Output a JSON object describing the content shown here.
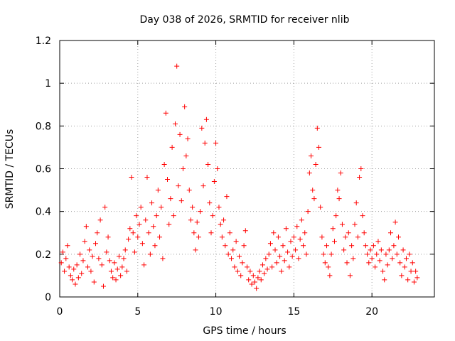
{
  "chart_data": {
    "type": "scatter",
    "title": "Day 038 of 2026, SRMTID for receiver nlib",
    "xlabel": "GPS time / hours",
    "ylabel": "SRMTID / TECUs",
    "xlim": [
      0,
      24
    ],
    "ylim": [
      0,
      1.2
    ],
    "xticks": [
      0,
      5,
      10,
      15,
      20
    ],
    "xtick_labels": [
      "0",
      "5",
      "10",
      "15",
      "20"
    ],
    "yticks": [
      0,
      0.2,
      0.4,
      0.6,
      0.8,
      1,
      1.2
    ],
    "ytick_labels": [
      "0",
      "0.2",
      "0.4",
      "0.6",
      "0.8",
      "1",
      "1.2"
    ],
    "grid": true,
    "marker": "+",
    "color": "#ff0000",
    "series": [
      {
        "name": "SRMTID",
        "points": [
          [
            0.1,
            0.16
          ],
          [
            0.2,
            0.21
          ],
          [
            0.3,
            0.12
          ],
          [
            0.4,
            0.18
          ],
          [
            0.5,
            0.24
          ],
          [
            0.6,
            0.14
          ],
          [
            0.7,
            0.1
          ],
          [
            0.8,
            0.08
          ],
          [
            0.9,
            0.13
          ],
          [
            1.0,
            0.06
          ],
          [
            1.1,
            0.15
          ],
          [
            1.2,
            0.09
          ],
          [
            1.3,
            0.2
          ],
          [
            1.4,
            0.11
          ],
          [
            1.5,
            0.17
          ],
          [
            1.6,
            0.26
          ],
          [
            1.7,
            0.33
          ],
          [
            1.8,
            0.14
          ],
          [
            1.9,
            0.22
          ],
          [
            2.0,
            0.12
          ],
          [
            2.1,
            0.19
          ],
          [
            2.2,
            0.07
          ],
          [
            2.3,
            0.25
          ],
          [
            2.4,
            0.3
          ],
          [
            2.5,
            0.18
          ],
          [
            2.6,
            0.36
          ],
          [
            2.7,
            0.15
          ],
          [
            2.8,
            0.05
          ],
          [
            2.9,
            0.42
          ],
          [
            3.0,
            0.21
          ],
          [
            3.1,
            0.28
          ],
          [
            3.2,
            0.17
          ],
          [
            3.3,
            0.12
          ],
          [
            3.4,
            0.09
          ],
          [
            3.5,
            0.16
          ],
          [
            3.6,
            0.08
          ],
          [
            3.7,
            0.13
          ],
          [
            3.8,
            0.19
          ],
          [
            3.9,
            0.1
          ],
          [
            4.0,
            0.14
          ],
          [
            4.1,
            0.18
          ],
          [
            4.2,
            0.22
          ],
          [
            4.3,
            0.12
          ],
          [
            4.4,
            0.27
          ],
          [
            4.5,
            0.32
          ],
          [
            4.6,
            0.56
          ],
          [
            4.7,
            0.3
          ],
          [
            4.8,
            0.21
          ],
          [
            4.9,
            0.38
          ],
          [
            5.0,
            0.28
          ],
          [
            5.1,
            0.34
          ],
          [
            5.2,
            0.42
          ],
          [
            5.3,
            0.25
          ],
          [
            5.4,
            0.15
          ],
          [
            5.5,
            0.36
          ],
          [
            5.6,
            0.56
          ],
          [
            5.7,
            0.3
          ],
          [
            5.8,
            0.2
          ],
          [
            5.9,
            0.44
          ],
          [
            6.0,
            0.33
          ],
          [
            6.1,
            0.24
          ],
          [
            6.2,
            0.38
          ],
          [
            6.3,
            0.5
          ],
          [
            6.4,
            0.28
          ],
          [
            6.5,
            0.42
          ],
          [
            6.6,
            0.18
          ],
          [
            6.7,
            0.62
          ],
          [
            6.8,
            0.86
          ],
          [
            6.9,
            0.55
          ],
          [
            7.0,
            0.34
          ],
          [
            7.1,
            0.46
          ],
          [
            7.2,
            0.7
          ],
          [
            7.3,
            0.38
          ],
          [
            7.4,
            0.81
          ],
          [
            7.5,
            1.08
          ],
          [
            7.6,
            0.52
          ],
          [
            7.7,
            0.76
          ],
          [
            7.8,
            0.45
          ],
          [
            7.9,
            0.6
          ],
          [
            8.0,
            0.89
          ],
          [
            8.1,
            0.66
          ],
          [
            8.2,
            0.74
          ],
          [
            8.3,
            0.5
          ],
          [
            8.4,
            0.36
          ],
          [
            8.5,
            0.42
          ],
          [
            8.6,
            0.3
          ],
          [
            8.7,
            0.22
          ],
          [
            8.8,
            0.35
          ],
          [
            8.9,
            0.28
          ],
          [
            9.0,
            0.4
          ],
          [
            9.1,
            0.79
          ],
          [
            9.2,
            0.52
          ],
          [
            9.3,
            0.72
          ],
          [
            9.4,
            0.83
          ],
          [
            9.5,
            0.62
          ],
          [
            9.6,
            0.44
          ],
          [
            9.7,
            0.3
          ],
          [
            9.8,
            0.38
          ],
          [
            9.9,
            0.54
          ],
          [
            10.0,
            0.72
          ],
          [
            10.1,
            0.6
          ],
          [
            10.2,
            0.42
          ],
          [
            10.3,
            0.34
          ],
          [
            10.4,
            0.28
          ],
          [
            10.5,
            0.36
          ],
          [
            10.6,
            0.24
          ],
          [
            10.7,
            0.47
          ],
          [
            10.8,
            0.2
          ],
          [
            10.9,
            0.3
          ],
          [
            11.0,
            0.18
          ],
          [
            11.1,
            0.22
          ],
          [
            11.2,
            0.14
          ],
          [
            11.3,
            0.26
          ],
          [
            11.4,
            0.12
          ],
          [
            11.5,
            0.19
          ],
          [
            11.6,
            0.1
          ],
          [
            11.7,
            0.16
          ],
          [
            11.8,
            0.24
          ],
          [
            11.9,
            0.31
          ],
          [
            12.0,
            0.14
          ],
          [
            12.1,
            0.08
          ],
          [
            12.2,
            0.12
          ],
          [
            12.3,
            0.06
          ],
          [
            12.4,
            0.1
          ],
          [
            12.5,
            0.07
          ],
          [
            12.6,
            0.04
          ],
          [
            12.7,
            0.09
          ],
          [
            12.8,
            0.12
          ],
          [
            12.9,
            0.08
          ],
          [
            13.0,
            0.15
          ],
          [
            13.1,
            0.11
          ],
          [
            13.2,
            0.18
          ],
          [
            13.3,
            0.13
          ],
          [
            13.4,
            0.2
          ],
          [
            13.5,
            0.25
          ],
          [
            13.6,
            0.14
          ],
          [
            13.7,
            0.3
          ],
          [
            13.8,
            0.22
          ],
          [
            13.9,
            0.16
          ],
          [
            14.0,
            0.28
          ],
          [
            14.1,
            0.19
          ],
          [
            14.2,
            0.12
          ],
          [
            14.3,
            0.24
          ],
          [
            14.4,
            0.17
          ],
          [
            14.5,
            0.32
          ],
          [
            14.6,
            0.21
          ],
          [
            14.7,
            0.14
          ],
          [
            14.8,
            0.26
          ],
          [
            14.9,
            0.19
          ],
          [
            15.0,
            0.28
          ],
          [
            15.1,
            0.22
          ],
          [
            15.2,
            0.33
          ],
          [
            15.3,
            0.18
          ],
          [
            15.4,
            0.27
          ],
          [
            15.5,
            0.36
          ],
          [
            15.6,
            0.24
          ],
          [
            15.7,
            0.3
          ],
          [
            15.8,
            0.2
          ],
          [
            15.9,
            0.4
          ],
          [
            16.0,
            0.58
          ],
          [
            16.1,
            0.66
          ],
          [
            16.2,
            0.5
          ],
          [
            16.3,
            0.46
          ],
          [
            16.4,
            0.62
          ],
          [
            16.5,
            0.79
          ],
          [
            16.6,
            0.7
          ],
          [
            16.7,
            0.42
          ],
          [
            16.8,
            0.28
          ],
          [
            16.9,
            0.2
          ],
          [
            17.0,
            0.16
          ],
          [
            17.1,
            0.24
          ],
          [
            17.2,
            0.14
          ],
          [
            17.3,
            0.1
          ],
          [
            17.4,
            0.2
          ],
          [
            17.5,
            0.32
          ],
          [
            17.6,
            0.26
          ],
          [
            17.7,
            0.38
          ],
          [
            17.8,
            0.5
          ],
          [
            17.9,
            0.46
          ],
          [
            18.0,
            0.58
          ],
          [
            18.1,
            0.34
          ],
          [
            18.2,
            0.22
          ],
          [
            18.3,
            0.28
          ],
          [
            18.4,
            0.16
          ],
          [
            18.5,
            0.3
          ],
          [
            18.6,
            0.1
          ],
          [
            18.7,
            0.24
          ],
          [
            18.8,
            0.18
          ],
          [
            18.9,
            0.34
          ],
          [
            19.0,
            0.44
          ],
          [
            19.1,
            0.28
          ],
          [
            19.2,
            0.56
          ],
          [
            19.3,
            0.6
          ],
          [
            19.4,
            0.38
          ],
          [
            19.5,
            0.3
          ],
          [
            19.6,
            0.24
          ],
          [
            19.7,
            0.2
          ],
          [
            19.8,
            0.16
          ],
          [
            19.9,
            0.22
          ],
          [
            20.0,
            0.18
          ],
          [
            20.1,
            0.24
          ],
          [
            20.2,
            0.14
          ],
          [
            20.3,
            0.2
          ],
          [
            20.4,
            0.26
          ],
          [
            20.5,
            0.17
          ],
          [
            20.6,
            0.22
          ],
          [
            20.7,
            0.12
          ],
          [
            20.8,
            0.08
          ],
          [
            20.9,
            0.2
          ],
          [
            21.0,
            0.15
          ],
          [
            21.1,
            0.22
          ],
          [
            21.2,
            0.3
          ],
          [
            21.3,
            0.18
          ],
          [
            21.4,
            0.24
          ],
          [
            21.5,
            0.35
          ],
          [
            21.6,
            0.2
          ],
          [
            21.7,
            0.28
          ],
          [
            21.8,
            0.16
          ],
          [
            21.9,
            0.1
          ],
          [
            22.0,
            0.22
          ],
          [
            22.1,
            0.14
          ],
          [
            22.2,
            0.18
          ],
          [
            22.3,
            0.08
          ],
          [
            22.4,
            0.2
          ],
          [
            22.5,
            0.12
          ],
          [
            22.6,
            0.16
          ],
          [
            22.7,
            0.07
          ],
          [
            22.8,
            0.12
          ],
          [
            22.9,
            0.09
          ]
        ]
      }
    ]
  }
}
